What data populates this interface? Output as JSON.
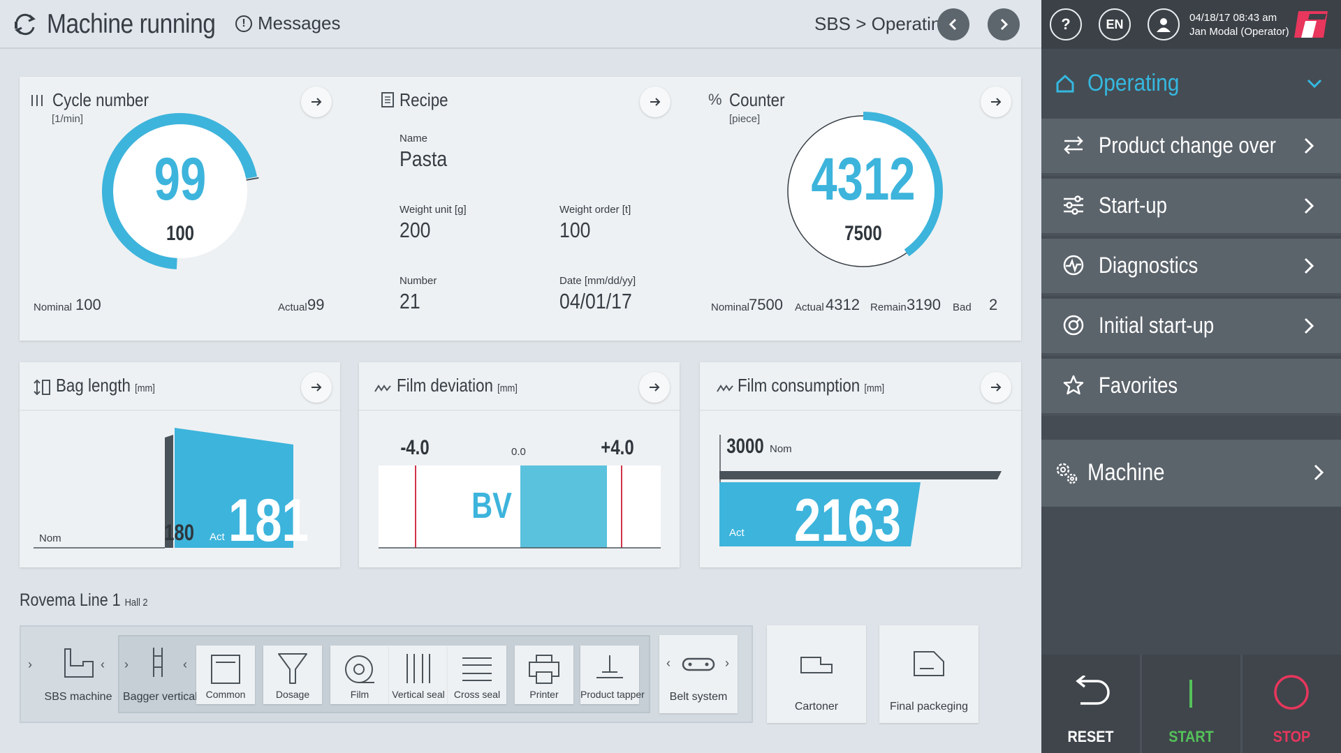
{
  "header": {
    "status_title": "Machine running",
    "messages_label": "Messages",
    "breadcrumb": "SBS > Operating"
  },
  "user_bar": {
    "help_label": "?",
    "language": "EN",
    "datetime": "04/18/17 08:43 am",
    "user": "Jan Modal (Operator)"
  },
  "menu": {
    "section": "Operating",
    "items": [
      {
        "label": "Product change over",
        "icon": "swap-arrows-icon"
      },
      {
        "label": "Start-up",
        "icon": "sliders-icon"
      },
      {
        "label": "Diagnostics",
        "icon": "pulse-icon"
      },
      {
        "label": "Initial start-up",
        "icon": "gauge-icon"
      },
      {
        "label": "Favorites",
        "icon": "star-icon"
      }
    ],
    "machine_label": "Machine"
  },
  "actions": {
    "reset": "RESET",
    "start": "START",
    "stop": "STOP",
    "colors": {
      "start": "#55c25a",
      "stop": "#e8365c"
    }
  },
  "cycle": {
    "title": "Cycle number",
    "unit": "[1/min]",
    "actual": "99",
    "nominal": "100",
    "nominal_label": "Nominal",
    "nominal_value": "100",
    "actual_label": "Actual",
    "actual_value": "99",
    "gauge_fraction": 0.99
  },
  "recipe": {
    "title": "Recipe",
    "name_label": "Name",
    "name": "Pasta",
    "weight_unit_label": "Weight unit [g]",
    "weight_unit": "200",
    "weight_order_label": "Weight order [t]",
    "weight_order": "100",
    "number_label": "Number",
    "number": "21",
    "date_label": "Date [mm/dd/yy]",
    "date": "04/01/17"
  },
  "counter": {
    "title": "Counter",
    "unit": "[piece]",
    "actual": "4312",
    "nominal": "7500",
    "nominal_label": "Nominal",
    "nominal_value": "7500",
    "actual_label": "Actual",
    "actual_value": "4312",
    "remain_label": "Remain",
    "remain_value": "3190",
    "bad_label": "Bad",
    "bad_value": "2",
    "gauge_fraction": 0.575
  },
  "bag_length": {
    "title": "Bag length",
    "unit": "[mm]",
    "nom_label": "Nom",
    "nom_value": "180",
    "act_label": "Act",
    "act_value": "181"
  },
  "film_deviation": {
    "title": "Film deviation",
    "unit": "[mm]",
    "min": "-4.0",
    "center": "0.0",
    "max": "+4.0",
    "marker": "BV"
  },
  "film_consumption": {
    "title": "Film consumption",
    "unit": "[mm]",
    "nom_value": "3000",
    "nom_label": "Nom",
    "act_label": "Act",
    "act_value": "2163"
  },
  "line": {
    "title": "Rovema Line 1",
    "subtitle": "Hall 2",
    "stations": {
      "sbs": "SBS machine",
      "bagger": "Bagger vertical",
      "common": "Common",
      "dosage": "Dosage",
      "film": "Film",
      "vertical_seal": "Vertical seal",
      "cross_seal": "Cross seal",
      "printer": "Printer",
      "product_tapper": "Product tapper",
      "belt": "Belt system",
      "cartoner": "Cartoner",
      "final_packaging": "Final packeging"
    }
  },
  "colors": {
    "accent": "#3db4dc",
    "menu_accent": "#35b8e0",
    "deviation_line": "#d0344a"
  }
}
